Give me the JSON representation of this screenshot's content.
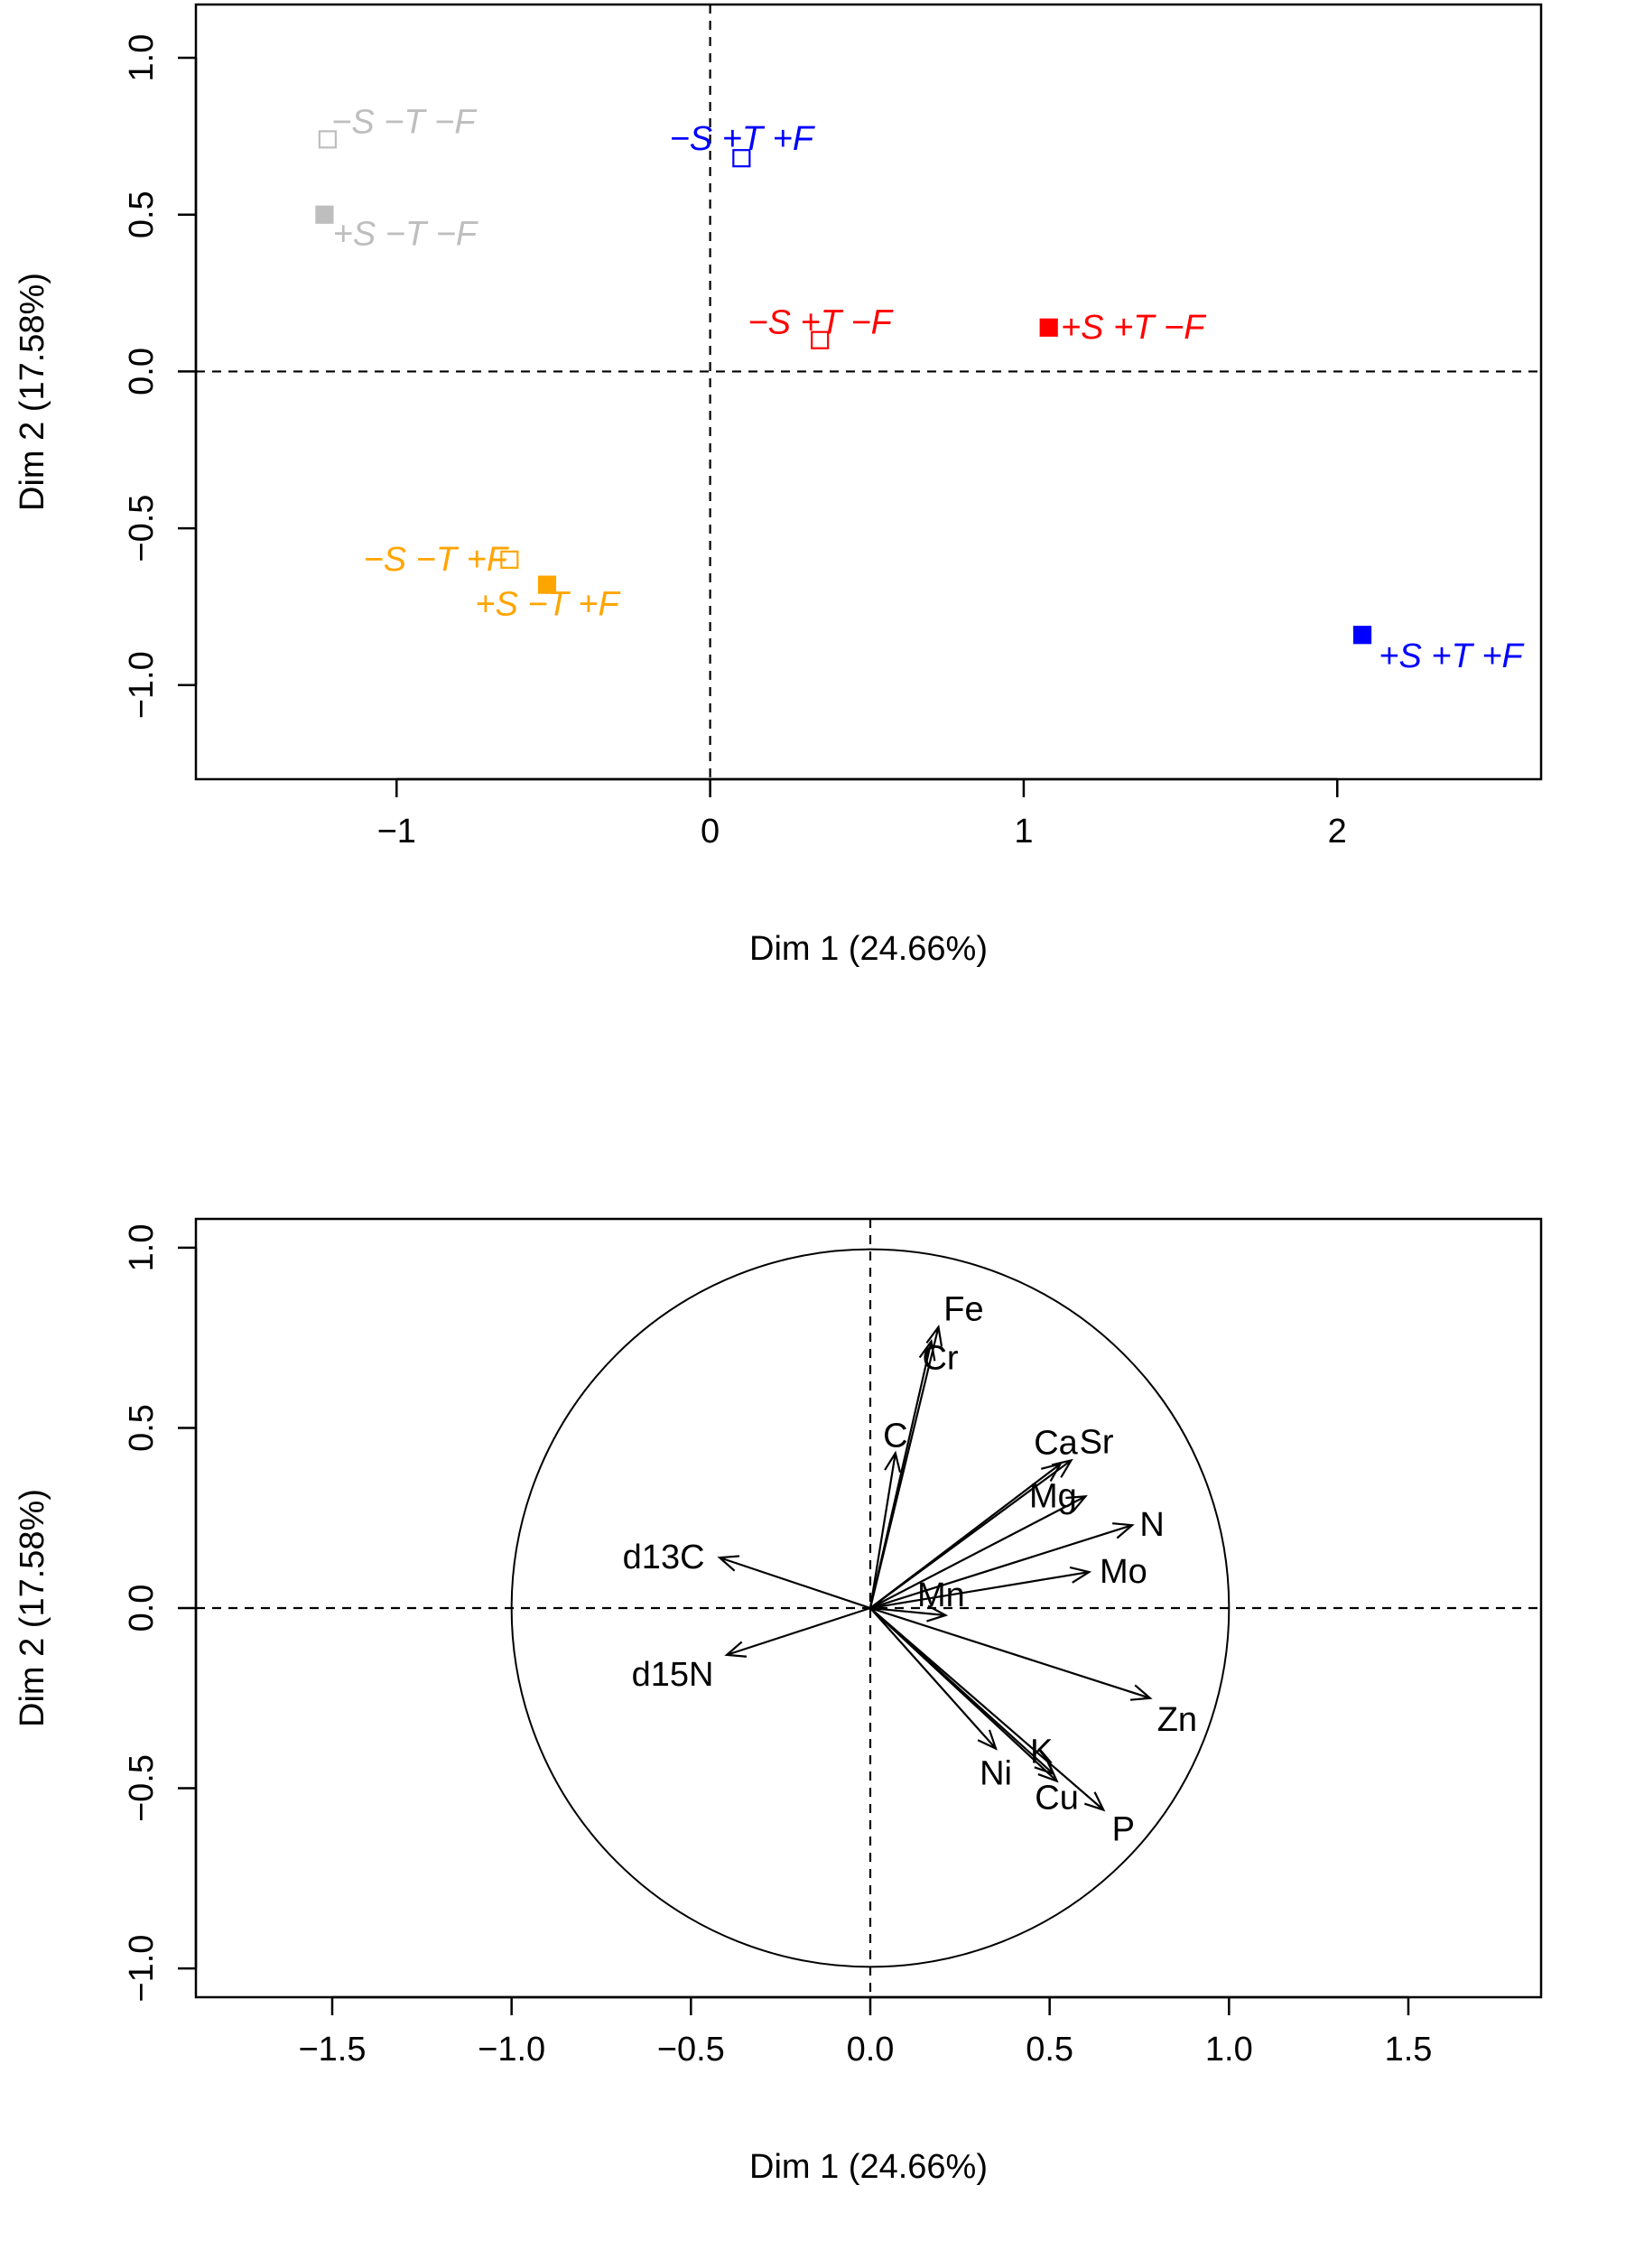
{
  "chart_data": [
    {
      "type": "scatter",
      "title": "",
      "xlabel": "Dim 1 (24.66%)",
      "ylabel": "Dim 2 (17.58%)",
      "xlim": [
        -1.64,
        2.65
      ],
      "ylim": [
        -1.3,
        1.17
      ],
      "xticks": [
        -1,
        0,
        1,
        2
      ],
      "xtick_labels": [
        "−1",
        "0",
        "1",
        "2"
      ],
      "yticks": [
        -1.0,
        -0.5,
        0.0,
        0.5,
        1.0
      ],
      "ytick_labels": [
        "−1.0",
        "−0.5",
        "0.0",
        "0.5",
        "1.0"
      ],
      "points": [
        {
          "label": "−S −T −F",
          "x": -1.22,
          "y": 0.74,
          "color": "#BEBEBE",
          "filled": false
        },
        {
          "label": "+S −T −F",
          "x": -1.23,
          "y": 0.5,
          "color": "#BEBEBE",
          "filled": true
        },
        {
          "label": "−S +T +F",
          "x": 0.1,
          "y": 0.68,
          "color": "#0000FF",
          "filled": false
        },
        {
          "label": "−S +T −F",
          "x": 0.35,
          "y": 0.1,
          "color": "#FF0000",
          "filled": false
        },
        {
          "label": "+S +T −F",
          "x": 1.08,
          "y": 0.14,
          "color": "#FF0000",
          "filled": true
        },
        {
          "label": "−S −T +F",
          "x": -0.64,
          "y": -0.6,
          "color": "#FFA500",
          "filled": false
        },
        {
          "label": "+S −T +F",
          "x": -0.52,
          "y": -0.68,
          "color": "#FFA500",
          "filled": true
        },
        {
          "label": "+S +T +F",
          "x": 2.08,
          "y": -0.84,
          "color": "#0000FF",
          "filled": true
        }
      ]
    },
    {
      "type": "biplot",
      "title": "",
      "xlabel": "Dim 1 (24.66%)",
      "ylabel": "Dim 2 (17.58%)",
      "xlim": [
        -1.88,
        1.87
      ],
      "ylim": [
        -1.08,
        1.08
      ],
      "xticks": [
        -1.5,
        -1.0,
        -0.5,
        0.0,
        0.5,
        1.0,
        1.5
      ],
      "xtick_labels": [
        "−1.5",
        "−1.0",
        "−0.5",
        "0.0",
        "0.5",
        "1.0",
        "1.5"
      ],
      "yticks": [
        -1.0,
        -0.5,
        0.0,
        0.5,
        1.0
      ],
      "ytick_labels": [
        "−1.0",
        "−0.5",
        "0.0",
        "0.5",
        "1.0"
      ],
      "circle_radius": 1.0,
      "vectors": [
        {
          "label": "Fe",
          "x": 0.19,
          "y": 0.78
        },
        {
          "label": "Cr",
          "x": 0.17,
          "y": 0.74
        },
        {
          "label": "C",
          "x": 0.07,
          "y": 0.43
        },
        {
          "label": "Ca",
          "x": 0.56,
          "y": 0.41
        },
        {
          "label": "Sr",
          "x": 0.53,
          "y": 0.4
        },
        {
          "label": "Mg",
          "x": 0.6,
          "y": 0.31
        },
        {
          "label": "N",
          "x": 0.73,
          "y": 0.23
        },
        {
          "label": "Mo",
          "x": 0.61,
          "y": 0.1
        },
        {
          "label": "Mn",
          "x": 0.21,
          "y": -0.02
        },
        {
          "label": "d13C",
          "x": -0.42,
          "y": 0.14
        },
        {
          "label": "d15N",
          "x": -0.4,
          "y": -0.13
        },
        {
          "label": "Zn",
          "x": 0.78,
          "y": -0.25
        },
        {
          "label": "Ni",
          "x": 0.35,
          "y": -0.39
        },
        {
          "label": "K",
          "x": 0.51,
          "y": -0.46
        },
        {
          "label": "Cu",
          "x": 0.52,
          "y": -0.48
        },
        {
          "label": "P",
          "x": 0.65,
          "y": -0.56
        }
      ]
    }
  ]
}
